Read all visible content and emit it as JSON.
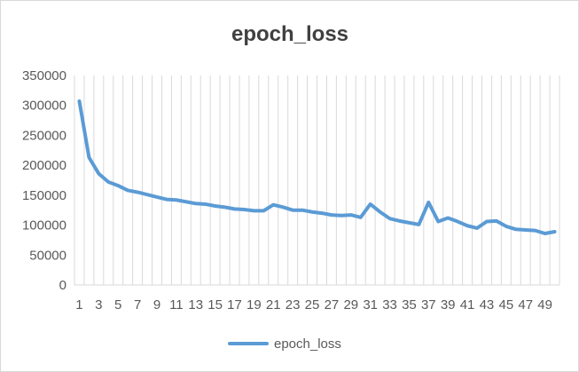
{
  "chart_data": {
    "type": "line",
    "title": "epoch_loss",
    "xlabel": "",
    "ylabel": "",
    "ylim": [
      0,
      350000
    ],
    "yticks": [
      0,
      50000,
      100000,
      150000,
      200000,
      250000,
      300000,
      350000
    ],
    "ytick_labels": [
      "0",
      "50000",
      "100000",
      "150000",
      "200000",
      "250000",
      "300000",
      "350000"
    ],
    "categories": [
      "1",
      "2",
      "3",
      "4",
      "5",
      "6",
      "7",
      "8",
      "9",
      "10",
      "11",
      "12",
      "13",
      "14",
      "15",
      "16",
      "17",
      "18",
      "19",
      "20",
      "21",
      "22",
      "23",
      "24",
      "25",
      "26",
      "27",
      "28",
      "29",
      "30",
      "31",
      "32",
      "33",
      "34",
      "35",
      "36",
      "37",
      "38",
      "39",
      "40",
      "41",
      "42",
      "43",
      "44",
      "45",
      "46",
      "47",
      "48",
      "49",
      "50"
    ],
    "xtick_labels": [
      "1",
      "3",
      "5",
      "7",
      "9",
      "11",
      "13",
      "15",
      "17",
      "19",
      "21",
      "23",
      "25",
      "27",
      "29",
      "31",
      "33",
      "35",
      "37",
      "39",
      "41",
      "43",
      "45",
      "47",
      "49"
    ],
    "grid": "vertical",
    "legend_position": "bottom",
    "series": [
      {
        "name": "epoch_loss",
        "color": "#5b9bd5",
        "values": [
          307000,
          213000,
          186000,
          172000,
          166000,
          158000,
          155000,
          151000,
          147000,
          143000,
          142000,
          139000,
          136000,
          135000,
          132000,
          130000,
          127000,
          126000,
          124000,
          124000,
          134000,
          130000,
          125000,
          125000,
          122000,
          120000,
          117000,
          116000,
          117000,
          113000,
          135000,
          122000,
          111000,
          107000,
          104000,
          101000,
          138000,
          106000,
          112000,
          106000,
          99000,
          95000,
          106000,
          107000,
          98000,
          93000,
          92000,
          91000,
          86000,
          89000
        ]
      }
    ]
  }
}
